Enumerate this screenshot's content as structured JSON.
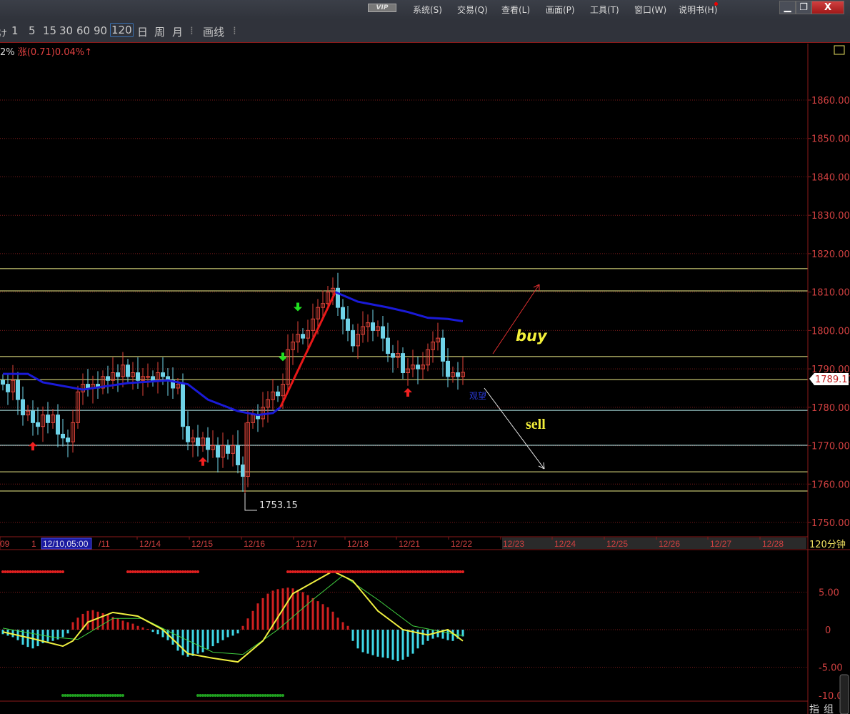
{
  "menubar": {
    "vip": "VIP",
    "items": [
      "系统(S)",
      "交易(Q)",
      "查看(L)",
      "画面(P)",
      "工具(T)",
      "窗口(W)",
      "说明书(H)"
    ],
    "minimize": "▁",
    "restore": "❐",
    "close": "X"
  },
  "toolbar": {
    "items": [
      "ゖ",
      "1",
      "5",
      "15",
      "30",
      "60",
      "90",
      "120",
      "日",
      "周",
      "月",
      "⁞",
      "画线",
      "⁞"
    ],
    "selected": "120"
  },
  "info": {
    "left": "2%",
    "change": "涨(0.71)0.04%↑"
  },
  "colors": {
    "up": "#e0453a",
    "down": "#6fd3e8",
    "ma": "#1a1ad8",
    "ma_up": "#e81818",
    "level_yellow": "#f2f08a",
    "level_cyan": "#b8f0f0",
    "grid": "#7a1a1a",
    "axis_text": "#d04040"
  },
  "chart_data": [
    {
      "type": "candlestick",
      "interval": "120分钟",
      "y_axis": {
        "ticks": [
          1750,
          1760,
          1770,
          1780,
          1790,
          1800,
          1810,
          1820,
          1830,
          1840,
          1850,
          1860
        ],
        "tick_labels": [
          "1750.00",
          "1760.00",
          "1770.00",
          "1780.00",
          "1790.00",
          "1800.00",
          "1810.00",
          "1820.00",
          "1830.00",
          "1840.00",
          "1850.00",
          "1860.00"
        ],
        "range": [
          1746,
          1873
        ]
      },
      "x_axis": {
        "labels": [
          "09",
          "1",
          "12/10,05:00",
          "/11",
          "12/14",
          "12/15",
          "12/16",
          "12/17",
          "12/18",
          "12/21",
          "12/22",
          "12/23",
          "12/24",
          "12/25",
          "12/26",
          "12/27",
          "12/28"
        ],
        "highlighted": "12/10,05:00"
      },
      "last_price": "1789.11",
      "low_label": "1753.15",
      "closes": [
        1786,
        1784,
        1787,
        1782,
        1778,
        1779,
        1776,
        1775,
        1778,
        1776,
        1778,
        1773,
        1772,
        1771,
        1776,
        1784,
        1786,
        1785,
        1786,
        1785,
        1788,
        1787,
        1789,
        1788,
        1791,
        1788,
        1789,
        1787,
        1788,
        1788,
        1787,
        1789,
        1788,
        1787,
        1785,
        1786,
        1775,
        1771,
        1772,
        1770,
        1772,
        1769,
        1770,
        1767,
        1770,
        1768,
        1770,
        1765,
        1762,
        1776,
        1778,
        1777,
        1780,
        1782,
        1784,
        1783,
        1786,
        1795,
        1797,
        1799,
        1798,
        1800,
        1803,
        1806,
        1807,
        1810,
        1811,
        1806,
        1803,
        1800,
        1796,
        1799,
        1801,
        1802,
        1800,
        1801,
        1798,
        1794,
        1793,
        1794,
        1789,
        1790,
        1791,
        1790,
        1791,
        1795,
        1797,
        1798,
        1792,
        1788,
        1789,
        1788,
        1789.11
      ],
      "ma_down": [
        [
          0,
          1788.7
        ],
        [
          5,
          1788.7
        ],
        [
          8,
          1786.5
        ],
        [
          16,
          1784.6
        ],
        [
          25,
          1786.3
        ],
        [
          33,
          1787
        ],
        [
          37,
          1786
        ],
        [
          41,
          1782
        ],
        [
          47,
          1779
        ],
        [
          51,
          1778
        ],
        [
          54,
          1778.5
        ],
        [
          55.5,
          1780
        ]
      ],
      "ma_up": [
        [
          55.5,
          1780
        ],
        [
          66.5,
          1810
        ]
      ],
      "ma_down2": [
        [
          66.5,
          1810
        ],
        [
          71,
          1807.5
        ],
        [
          77,
          1806
        ],
        [
          81,
          1804.8
        ],
        [
          85,
          1803.3
        ],
        [
          89,
          1803
        ],
        [
          92,
          1802.4
        ]
      ],
      "levels": [
        {
          "price": 1816.1,
          "color": "yellow"
        },
        {
          "price": 1810.3,
          "color": "yellow"
        },
        {
          "price": 1793.2,
          "color": "yellow"
        },
        {
          "price": 1787.2,
          "color": "yellow"
        },
        {
          "price": 1779.2,
          "color": "cyan"
        },
        {
          "price": 1770.1,
          "color": "cyan"
        },
        {
          "price": 1763.2,
          "color": "yellow"
        },
        {
          "price": 1758.2,
          "color": "yellow"
        }
      ],
      "buy_signals": [
        6,
        40,
        81
      ],
      "sell_signals": [
        56,
        59
      ],
      "annotations": {
        "buy": "buy",
        "sell": "sell",
        "watch": "观望"
      }
    },
    {
      "type": "macd",
      "y_axis": {
        "ticks": [
          5,
          0,
          -5,
          -10
        ],
        "tick_labels": [
          "5.00",
          "0",
          "-5.00",
          "-10.0"
        ],
        "range": [
          -10,
          10
        ]
      },
      "histogram": [
        -0.6,
        -0.8,
        -1,
        -1.4,
        -2,
        -2.3,
        -2.5,
        -2.2,
        -1.8,
        -1.6,
        -1.5,
        -1.3,
        -1,
        -0.5,
        1,
        1.6,
        2.1,
        2.5,
        2.6,
        2.4,
        2.2,
        2,
        1.7,
        1.5,
        1.2,
        1,
        0.8,
        0.5,
        0.3,
        0.1,
        -0.3,
        -0.6,
        -1,
        -1.4,
        -2,
        -2.8,
        -3.4,
        -3.6,
        -3.5,
        -3.2,
        -3,
        -2.6,
        -2.2,
        -1.8,
        -1.4,
        -1,
        -0.8,
        -0.5,
        0.5,
        1.5,
        2.5,
        3.5,
        4.2,
        4.8,
        5.2,
        5.4,
        5.5,
        5.6,
        5.5,
        5.3,
        5,
        4.6,
        4.2,
        3.8,
        3.4,
        3,
        2.4,
        1.6,
        1,
        0.5,
        -1.5,
        -2.5,
        -3,
        -3.2,
        -3.4,
        -3.6,
        -3.7,
        -3.8,
        -4,
        -4.2,
        -4,
        -3.6,
        -3.2,
        -2.5,
        -2,
        -1.5,
        -1.2,
        -1,
        -1.2,
        -1.4,
        -1.5,
        -1.2,
        -0.9
      ],
      "dif": [
        [
          0,
          -0.3
        ],
        [
          6,
          -1.2
        ],
        [
          12,
          -2.2
        ],
        [
          14,
          -1.5
        ],
        [
          17,
          1
        ],
        [
          22,
          2.3
        ],
        [
          27,
          1.8
        ],
        [
          32,
          0
        ],
        [
          37,
          -3.2
        ],
        [
          42,
          -3.8
        ],
        [
          47,
          -4.3
        ],
        [
          52,
          -1.5
        ],
        [
          58,
          4.8
        ],
        [
          66,
          7.8
        ],
        [
          70,
          6.5
        ],
        [
          75,
          2.5
        ],
        [
          80,
          0
        ],
        [
          85,
          -0.7
        ],
        [
          89,
          0
        ],
        [
          92,
          -1.5
        ]
      ],
      "dea": [
        [
          0,
          0.2
        ],
        [
          10,
          -1
        ],
        [
          15,
          -1.3
        ],
        [
          22,
          1.5
        ],
        [
          28,
          1.5
        ],
        [
          34,
          -0.5
        ],
        [
          42,
          -3
        ],
        [
          48,
          -3.3
        ],
        [
          55,
          0
        ],
        [
          62,
          4
        ],
        [
          68,
          7.2
        ],
        [
          75,
          4
        ],
        [
          82,
          0.5
        ],
        [
          88,
          -0.3
        ],
        [
          92,
          -0.8
        ]
      ],
      "red_dots": [
        [
          0,
          12
        ],
        [
          25,
          39
        ],
        [
          57,
          92
        ]
      ],
      "green_dots": [
        [
          12,
          24
        ],
        [
          39,
          56
        ]
      ]
    }
  ],
  "footer": {
    "indicator": "指",
    "group": "组"
  }
}
